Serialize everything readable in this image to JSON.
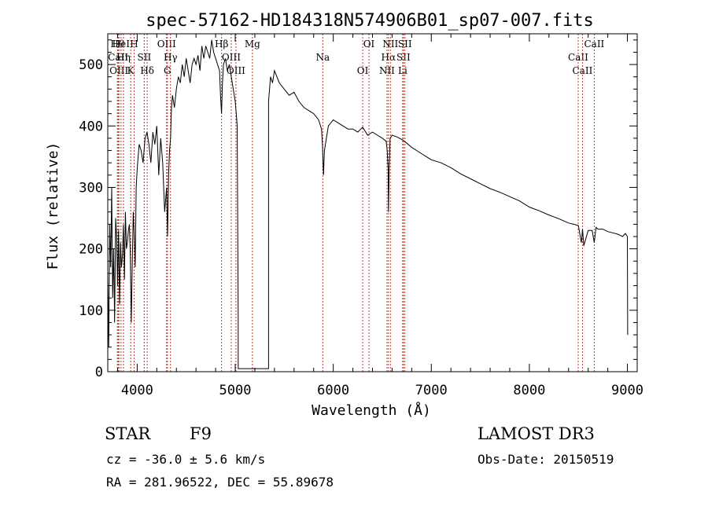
{
  "chart_data": {
    "type": "line",
    "title": "spec-57162-HD184318N574906B01_sp07-007.fits",
    "xlabel": "Wavelength (Å)",
    "ylabel": "Flux (relative)",
    "xlim": [
      3700,
      9100
    ],
    "ylim": [
      0,
      550
    ],
    "xticks": [
      4000,
      5000,
      6000,
      7000,
      8000,
      9000
    ],
    "xtick_labels": [
      "4000",
      "5000",
      "6000",
      "7000",
      "8000",
      "9000"
    ],
    "yticks": [
      0,
      100,
      200,
      300,
      400,
      500
    ],
    "ytick_labels": [
      "0",
      "100",
      "200",
      "300",
      "400",
      "500"
    ],
    "series": [
      {
        "name": "spectrum",
        "x": [
          3700,
          3710,
          3720,
          3730,
          3740,
          3750,
          3760,
          3770,
          3780,
          3790,
          3800,
          3810,
          3820,
          3830,
          3840,
          3850,
          3860,
          3870,
          3880,
          3890,
          3900,
          3910,
          3920,
          3930,
          3940,
          3950,
          3960,
          3970,
          3980,
          3990,
          4000,
          4020,
          4040,
          4060,
          4080,
          4100,
          4120,
          4140,
          4160,
          4180,
          4200,
          4220,
          4240,
          4260,
          4280,
          4300,
          4310,
          4320,
          4330,
          4340,
          4350,
          4360,
          4380,
          4400,
          4420,
          4440,
          4460,
          4480,
          4500,
          4520,
          4540,
          4560,
          4580,
          4600,
          4620,
          4640,
          4660,
          4680,
          4700,
          4720,
          4740,
          4760,
          4780,
          4800,
          4820,
          4840,
          4850,
          4860,
          4870,
          4880,
          4900,
          4920,
          4940,
          4960,
          4980,
          5000,
          5010,
          5020,
          5030,
          5030,
          5340,
          5340,
          5360,
          5380,
          5400,
          5450,
          5500,
          5550,
          5600,
          5650,
          5700,
          5750,
          5800,
          5850,
          5880,
          5890,
          5900,
          5910,
          5950,
          6000,
          6050,
          6100,
          6150,
          6200,
          6250,
          6300,
          6350,
          6400,
          6450,
          6500,
          6540,
          6550,
          6560,
          6563,
          6570,
          6580,
          6600,
          6650,
          6700,
          6750,
          6800,
          6850,
          6900,
          6950,
          7000,
          7100,
          7200,
          7300,
          7400,
          7500,
          7600,
          7700,
          7800,
          7900,
          8000,
          8100,
          8200,
          8300,
          8400,
          8450,
          8500,
          8530,
          8542,
          8555,
          8600,
          8640,
          8662,
          8680,
          8700,
          8750,
          8800,
          8850,
          8900,
          8950,
          8980,
          9000,
          9003
        ],
        "values": [
          160,
          40,
          240,
          170,
          300,
          120,
          200,
          80,
          250,
          220,
          140,
          230,
          110,
          210,
          170,
          190,
          240,
          150,
          260,
          200,
          210,
          230,
          240,
          190,
          80,
          180,
          260,
          220,
          170,
          300,
          330,
          370,
          360,
          340,
          380,
          390,
          370,
          340,
          390,
          370,
          400,
          320,
          380,
          340,
          260,
          300,
          220,
          320,
          360,
          380,
          430,
          450,
          430,
          460,
          480,
          470,
          500,
          480,
          510,
          490,
          470,
          500,
          510,
          500,
          515,
          490,
          530,
          510,
          530,
          520,
          510,
          540,
          520,
          510,
          500,
          490,
          450,
          420,
          470,
          500,
          510,
          490,
          500,
          480,
          460,
          440,
          420,
          400,
          90,
          5,
          5,
          440,
          480,
          470,
          490,
          470,
          460,
          450,
          455,
          440,
          430,
          425,
          420,
          410,
          395,
          370,
          320,
          360,
          400,
          410,
          405,
          400,
          395,
          395,
          390,
          398,
          385,
          390,
          385,
          380,
          375,
          360,
          330,
          260,
          330,
          380,
          385,
          382,
          378,
          372,
          365,
          360,
          355,
          350,
          345,
          340,
          332,
          322,
          314,
          306,
          298,
          292,
          285,
          278,
          268,
          262,
          255,
          249,
          242,
          240,
          238,
          210,
          232,
          205,
          230,
          230,
          210,
          235,
          232,
          232,
          228,
          226,
          224,
          220,
          225,
          220,
          60
        ]
      }
    ],
    "line_markers": [
      {
        "label": "Hθ",
        "wavelength": 3798
      },
      {
        "label": "CaII",
        "wavelength": 3806
      },
      {
        "label": "OIII",
        "wavelength": 3814
      },
      {
        "label": "HeI",
        "wavelength": 3835
      },
      {
        "label": "Hη",
        "wavelength": 3860
      },
      {
        "label": "K",
        "wavelength": 3934
      },
      {
        "label": "H",
        "wavelength": 3969
      },
      {
        "label": "SII",
        "wavelength": 4072
      },
      {
        "label": "Hδ",
        "wavelength": 4102
      },
      {
        "label": "OIII",
        "wavelength": 4300
      },
      {
        "label": "Hγ",
        "wavelength": 4340
      },
      {
        "label": "G",
        "wavelength": 4308
      },
      {
        "label": "Hβ",
        "wavelength": 4861
      },
      {
        "label": "OIII",
        "wavelength": 4959
      },
      {
        "label": "OIII",
        "wavelength": 5007
      },
      {
        "label": "Mg",
        "wavelength": 5175
      },
      {
        "label": "Na",
        "wavelength": 5893
      },
      {
        "label": "OI",
        "wavelength": 6300
      },
      {
        "label": "OI",
        "wavelength": 6364
      },
      {
        "label": "Hα",
        "wavelength": 6563
      },
      {
        "label": "NII",
        "wavelength": 6548
      },
      {
        "label": "NII",
        "wavelength": 6583
      },
      {
        "label": "SII",
        "wavelength": 6716
      },
      {
        "label": "Li",
        "wavelength": 6708
      },
      {
        "label": "SII",
        "wavelength": 6731
      },
      {
        "label": "CaII",
        "wavelength": 8498
      },
      {
        "label": "CaII",
        "wavelength": 8542
      },
      {
        "label": "CaII",
        "wavelength": 8662
      }
    ]
  },
  "info": {
    "class": "STAR",
    "subclass": "F9",
    "survey": "LAMOST DR3",
    "cz": "cz = -36.0 ± 5.6 km/s",
    "obs_date": "Obs-Date: 20150519",
    "coords": "RA = 281.96522, DEC =  55.89678"
  }
}
